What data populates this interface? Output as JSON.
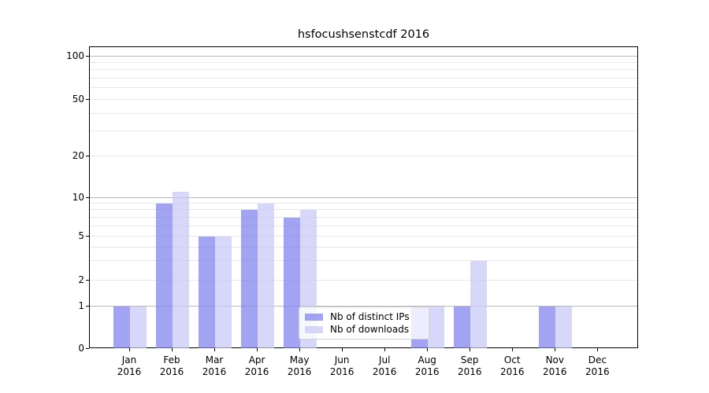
{
  "figure": {
    "title": "hsfocushsenstcdf 2016"
  },
  "chart_data": {
    "type": "bar",
    "title": "hsfocushsenstcdf 2016",
    "year_label": "2016",
    "categories": [
      "Jan",
      "Feb",
      "Mar",
      "Apr",
      "May",
      "Jun",
      "Jul",
      "Aug",
      "Sep",
      "Oct",
      "Nov",
      "Dec"
    ],
    "series": [
      {
        "name": "Nb of distinct IPs",
        "color": "#7f7ff0",
        "alpha": 0.72,
        "values": [
          1,
          9,
          5,
          8,
          7,
          0,
          0,
          1,
          1,
          0,
          1,
          0
        ]
      },
      {
        "name": "Nb of downloads",
        "color": "#c8c8f6",
        "alpha": 0.72,
        "values": [
          1,
          11,
          5,
          9,
          8,
          0,
          0,
          1,
          3,
          0,
          1,
          0
        ]
      }
    ],
    "yscale": "log-with-zero",
    "ylim": [
      0,
      130
    ],
    "yticks": [
      100,
      50,
      20,
      10,
      5,
      2,
      1,
      0
    ],
    "major_gridlines": [
      1,
      10,
      100
    ],
    "minor_gridlines": [
      2,
      3,
      4,
      5,
      6,
      7,
      8,
      9,
      20,
      30,
      40,
      50,
      60,
      70,
      80,
      90
    ],
    "grid": true,
    "legend": {
      "position": "lower-center",
      "entries": [
        "Nb of distinct IPs",
        "Nb of downloads"
      ]
    },
    "colors": {
      "major_grid": "#b8b8b8",
      "minor_grid": "#e7e7e7",
      "axis": "#000000"
    }
  }
}
